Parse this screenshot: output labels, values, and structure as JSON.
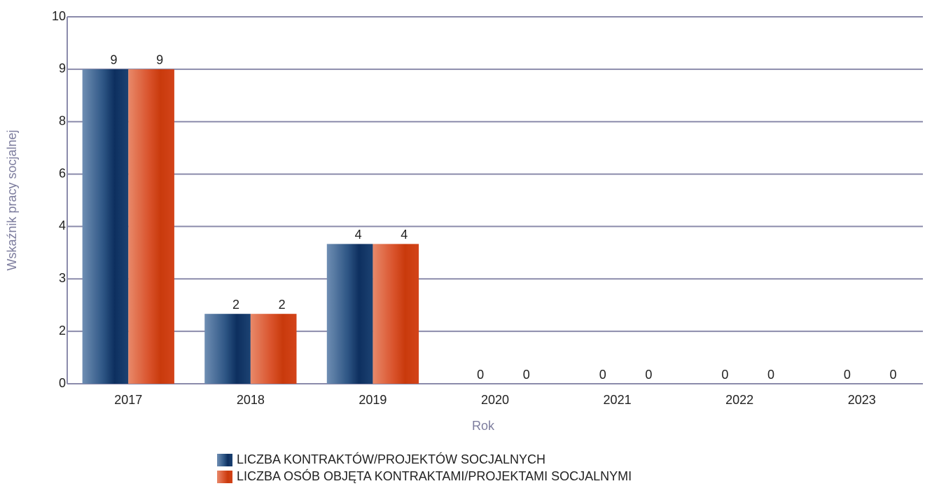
{
  "chart_data": {
    "type": "bar",
    "categories": [
      "2017",
      "2018",
      "2019",
      "2020",
      "2021",
      "2022",
      "2023"
    ],
    "series": [
      {
        "name": "LICZBA KONTRAKTÓW/PROJEKTÓW SOCJALNYCH",
        "color": "#1f4a7a",
        "values": [
          9,
          2,
          4,
          0,
          0,
          0,
          0
        ]
      },
      {
        "name": "LICZBA OSÓB OBJĘTA KONTRAKTAMI/PROJEKTAMI SOCJALNYMI",
        "color": "#d9441c",
        "values": [
          9,
          2,
          4,
          0,
          0,
          0,
          0
        ]
      }
    ],
    "xlabel": "Rok",
    "ylabel": "Wskaźnik pracy socjalnej",
    "ylim": [
      0,
      10.5
    ],
    "yticks": [
      0,
      {
        "value": 1.5,
        "label": "2"
      },
      3,
      {
        "value": 4.5,
        "label": "4"
      },
      6,
      {
        "value": 7.5,
        "label": "8"
      },
      9,
      {
        "value": 10.5,
        "label": "10"
      }
    ],
    "grid": true,
    "legend": "bottom"
  }
}
